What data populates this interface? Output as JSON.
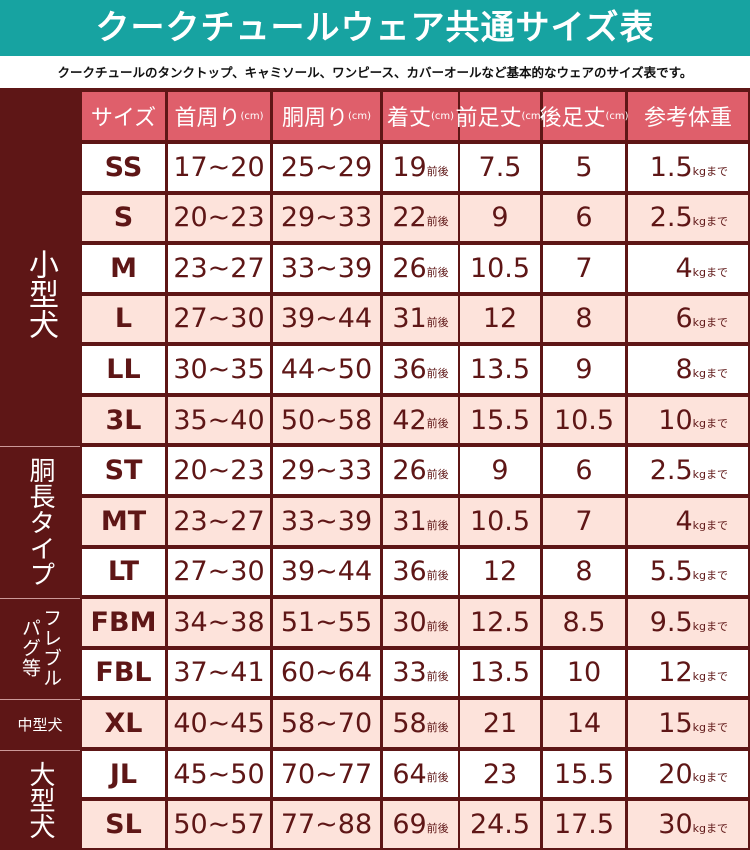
{
  "header": {
    "title": "クークチュールウェア共通サイズ表",
    "subtitle": "クークチュールのタンクトップ、キャミソール、ワンピース、カバーオールなど基本的なウェアのサイズ表です。"
  },
  "table": {
    "columns": [
      {
        "label": "サイズ"
      },
      {
        "label": "首周り",
        "unit": "(cm)"
      },
      {
        "label": "胴周り",
        "unit": "(cm)"
      },
      {
        "label": "着丈",
        "unit": "(cm)"
      },
      {
        "label": "前足丈",
        "unit": "(cm)"
      },
      {
        "label": "後足丈",
        "unit": "(cm)"
      },
      {
        "label": "参考体重"
      }
    ],
    "length_suffix": "前後",
    "weight_suffix": "kgまで",
    "groups": [
      {
        "lines": [
          "小型犬"
        ],
        "rows": [
          [
            "SS",
            "17~20",
            "25~29",
            "19",
            "7.5",
            "5",
            "1.5"
          ],
          [
            "S",
            "20~23",
            "29~33",
            "22",
            "9",
            "6",
            "2.5"
          ],
          [
            "M",
            "23~27",
            "33~39",
            "26",
            "10.5",
            "7",
            "4"
          ],
          [
            "L",
            "27~30",
            "39~44",
            "31",
            "12",
            "8",
            "6"
          ],
          [
            "LL",
            "30~35",
            "44~50",
            "36",
            "13.5",
            "9",
            "8"
          ],
          [
            "3L",
            "35~40",
            "50~58",
            "42",
            "15.5",
            "10.5",
            "10"
          ]
        ]
      },
      {
        "lines": [
          "胴長タイプ"
        ],
        "rows": [
          [
            "ST",
            "20~23",
            "29~33",
            "26",
            "9",
            "6",
            "2.5"
          ],
          [
            "MT",
            "23~27",
            "33~39",
            "31",
            "10.5",
            "7",
            "4"
          ],
          [
            "LT",
            "27~30",
            "39~44",
            "36",
            "12",
            "8",
            "5.5"
          ]
        ]
      },
      {
        "lines": [
          "フレブル",
          "パグ等"
        ],
        "rows": [
          [
            "FBM",
            "34~38",
            "51~55",
            "30",
            "12.5",
            "8.5",
            "9.5"
          ],
          [
            "FBL",
            "37~41",
            "60~64",
            "33",
            "13.5",
            "10",
            "12"
          ]
        ]
      },
      {
        "lines": [
          "中型犬"
        ],
        "rows": [
          [
            "XL",
            "40~45",
            "58~70",
            "58",
            "21",
            "14",
            "15"
          ]
        ]
      },
      {
        "lines": [
          "大型犬"
        ],
        "rows": [
          [
            "JL",
            "45~50",
            "70~77",
            "64",
            "23",
            "15.5",
            "20"
          ],
          [
            "SL",
            "50~57",
            "77~88",
            "69",
            "24.5",
            "17.5",
            "30"
          ]
        ]
      }
    ]
  }
}
